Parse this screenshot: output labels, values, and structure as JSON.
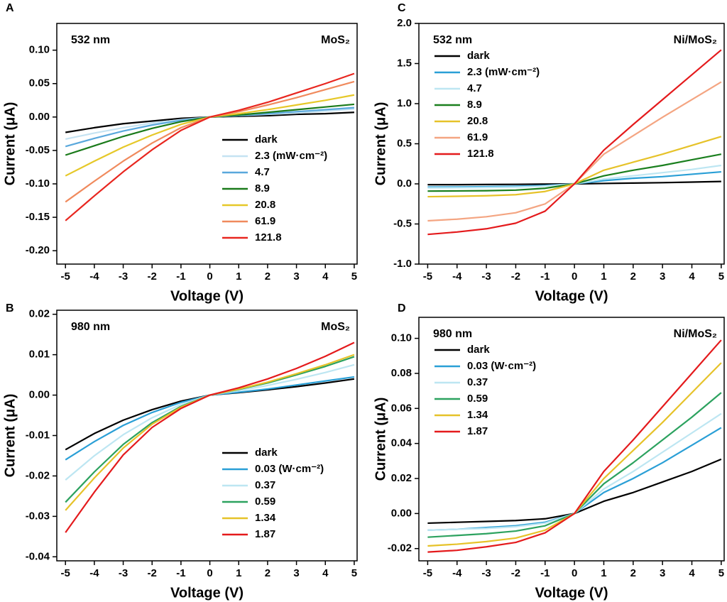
{
  "chart_data": [
    {
      "type": "line",
      "panel": "A",
      "annotations": [
        "532 nm",
        "MoS₂"
      ],
      "x_label": "Voltage (V)",
      "y_label": "Current (μA)",
      "x": [
        -5,
        -4,
        -3,
        -2,
        -1,
        0,
        1,
        2,
        3,
        4,
        5
      ],
      "xlim": [
        -5.3,
        5.1
      ],
      "xticks": [
        -5,
        -4,
        -3,
        -2,
        -1,
        0,
        1,
        2,
        3,
        4,
        5
      ],
      "ylim": [
        -0.22,
        0.14
      ],
      "yticks": [
        {
          "value": -0.2,
          "label": "-0.20"
        },
        -0.15,
        {
          "value": -0.1,
          "label": "-0.10"
        },
        -0.05,
        {
          "value": 0,
          "label": "0.00"
        },
        0.05,
        {
          "value": 0.1,
          "label": "0.10"
        }
      ],
      "legend": "lower right",
      "series": [
        {
          "name": "dark",
          "color": "#000000",
          "values": [
            -0.023,
            -0.016,
            -0.01,
            -0.006,
            -0.002,
            0,
            0.001,
            0.002,
            0.004,
            0.005,
            0.007
          ]
        },
        {
          "name": "2.3 (mW·cm⁻²)",
          "color": "#c5e3f2",
          "values": [
            -0.033,
            -0.024,
            -0.016,
            -0.009,
            -0.004,
            0,
            0.002,
            0.004,
            0.006,
            0.009,
            0.012
          ]
        },
        {
          "name": "4.7",
          "color": "#5aa8dc",
          "values": [
            -0.044,
            -0.032,
            -0.021,
            -0.012,
            -0.005,
            0,
            0.002,
            0.005,
            0.008,
            0.011,
            0.014
          ]
        },
        {
          "name": "8.9",
          "color": "#1a7a1a",
          "values": [
            -0.057,
            -0.043,
            -0.029,
            -0.017,
            -0.007,
            0,
            0.003,
            0.007,
            0.011,
            0.015,
            0.019
          ]
        },
        {
          "name": "20.8",
          "color": "#e6c829",
          "values": [
            -0.088,
            -0.066,
            -0.045,
            -0.027,
            -0.011,
            0,
            0.005,
            0.011,
            0.018,
            0.025,
            0.033
          ]
        },
        {
          "name": "61.9",
          "color": "#f08a5d",
          "values": [
            -0.127,
            -0.096,
            -0.066,
            -0.039,
            -0.016,
            0,
            0.008,
            0.018,
            0.029,
            0.041,
            0.053
          ]
        },
        {
          "name": "121.8",
          "color": "#e8261f",
          "values": [
            -0.155,
            -0.118,
            -0.082,
            -0.049,
            -0.02,
            0,
            0.01,
            0.022,
            0.036,
            0.05,
            0.065
          ]
        }
      ]
    },
    {
      "type": "line",
      "panel": "B",
      "annotations": [
        "980 nm",
        "MoS₂"
      ],
      "x_label": "Voltage (V)",
      "y_label": "Current (μA)",
      "x": [
        -5,
        -4,
        -3,
        -2,
        -1,
        0,
        1,
        2,
        3,
        4,
        5
      ],
      "xlim": [
        -5.3,
        5.1
      ],
      "xticks": [
        -5,
        -4,
        -3,
        -2,
        -1,
        0,
        1,
        2,
        3,
        4,
        5
      ],
      "ylim": [
        -0.041,
        0.021
      ],
      "yticks": [
        -0.04,
        -0.03,
        -0.02,
        -0.01,
        {
          "value": 0,
          "label": "0.00"
        },
        0.01,
        0.02
      ],
      "legend": "lower right",
      "series": [
        {
          "name": "dark",
          "color": "#000000",
          "values": [
            -0.0135,
            -0.0095,
            -0.0062,
            -0.0036,
            -0.0015,
            0,
            0.0006,
            0.0013,
            0.0021,
            0.003,
            0.004
          ]
        },
        {
          "name": "0.03 (W·cm⁻²)",
          "color": "#2a9fd6",
          "values": [
            -0.016,
            -0.0115,
            -0.0075,
            -0.0043,
            -0.0018,
            0,
            0.0007,
            0.0015,
            0.0025,
            0.0035,
            0.0045
          ]
        },
        {
          "name": "0.37",
          "color": "#bde6f2",
          "values": [
            -0.021,
            -0.015,
            -0.0098,
            -0.0056,
            -0.0023,
            0,
            0.0011,
            0.0024,
            0.0039,
            0.0056,
            0.0075
          ]
        },
        {
          "name": "0.59",
          "color": "#2ca25f",
          "values": [
            -0.0265,
            -0.019,
            -0.0122,
            -0.0068,
            -0.0028,
            0,
            0.0014,
            0.003,
            0.005,
            0.0071,
            0.0095
          ]
        },
        {
          "name": "1.34",
          "color": "#e6c229",
          "values": [
            -0.0285,
            -0.0205,
            -0.0131,
            -0.0072,
            -0.003,
            0,
            0.0015,
            0.0032,
            0.0053,
            0.0075,
            0.01
          ]
        },
        {
          "name": "1.87",
          "color": "#e41a1c",
          "values": [
            -0.034,
            -0.024,
            -0.0148,
            -0.008,
            -0.0033,
            0,
            0.0018,
            0.004,
            0.0066,
            0.0096,
            0.013
          ]
        }
      ]
    },
    {
      "type": "line",
      "panel": "C",
      "annotations": [
        "532 nm",
        "Ni/MoS₂"
      ],
      "x_label": "Voltage (V)",
      "y_label": "Current (μA)",
      "x": [
        -5,
        -4,
        -3,
        -2,
        -1,
        0,
        1,
        2,
        3,
        4,
        5
      ],
      "xlim": [
        -5.3,
        5.1
      ],
      "xticks": [
        -5,
        -4,
        -3,
        -2,
        -1,
        0,
        1,
        2,
        3,
        4,
        5
      ],
      "ylim": [
        -1.0,
        2.0
      ],
      "yticks": [
        {
          "value": -1,
          "label": "-1.0"
        },
        -0.5,
        {
          "value": 0,
          "label": "0.0"
        },
        0.5,
        {
          "value": 1,
          "label": "1.0"
        },
        1.5,
        {
          "value": 2,
          "label": "2.0"
        }
      ],
      "legend": "upper left",
      "series": [
        {
          "name": "dark",
          "color": "#000000",
          "values": [
            -0.01,
            -0.01,
            -0.008,
            -0.006,
            -0.003,
            0,
            0.005,
            0.01,
            0.015,
            0.022,
            0.03
          ]
        },
        {
          "name": "2.3 (mW·cm⁻²)",
          "color": "#2a9fd6",
          "values": [
            -0.04,
            -0.038,
            -0.035,
            -0.03,
            -0.02,
            0,
            0.04,
            0.07,
            0.09,
            0.12,
            0.15
          ]
        },
        {
          "name": "4.7",
          "color": "#bde6f2",
          "values": [
            -0.05,
            -0.048,
            -0.045,
            -0.04,
            -0.028,
            0,
            0.06,
            0.1,
            0.14,
            0.18,
            0.23
          ]
        },
        {
          "name": "8.9",
          "color": "#1a7f1e",
          "values": [
            -0.09,
            -0.088,
            -0.085,
            -0.078,
            -0.055,
            0,
            0.1,
            0.17,
            0.23,
            0.3,
            0.37
          ]
        },
        {
          "name": "20.8",
          "color": "#e6c229",
          "values": [
            -0.16,
            -0.155,
            -0.148,
            -0.135,
            -0.095,
            0,
            0.17,
            0.27,
            0.37,
            0.48,
            0.59
          ]
        },
        {
          "name": "61.9",
          "color": "#f4a582",
          "values": [
            -0.46,
            -0.44,
            -0.41,
            -0.36,
            -0.25,
            0,
            0.37,
            0.6,
            0.83,
            1.05,
            1.27
          ]
        },
        {
          "name": "121.8",
          "color": "#e41a1c",
          "values": [
            -0.63,
            -0.6,
            -0.56,
            -0.49,
            -0.34,
            0,
            0.42,
            0.74,
            1.05,
            1.36,
            1.67
          ]
        }
      ]
    },
    {
      "type": "line",
      "panel": "D",
      "annotations": [
        "980 nm",
        "Ni/MoS₂"
      ],
      "x_label": "Voltage (V)",
      "y_label": "Current (μA)",
      "x": [
        -5,
        -4,
        -3,
        -2,
        -1,
        0,
        1,
        2,
        3,
        4,
        5
      ],
      "xlim": [
        -5.3,
        5.1
      ],
      "xticks": [
        -5,
        -4,
        -3,
        -2,
        -1,
        0,
        1,
        2,
        3,
        4,
        5
      ],
      "ylim": [
        -0.027,
        0.112
      ],
      "yticks": [
        -0.02,
        {
          "value": 0,
          "label": "0.00"
        },
        0.02,
        0.04,
        0.06,
        0.08,
        {
          "value": 0.1,
          "label": "0.10"
        }
      ],
      "legend": "upper left",
      "series": [
        {
          "name": "dark",
          "color": "#000000",
          "values": [
            -0.0055,
            -0.005,
            -0.0045,
            -0.004,
            -0.003,
            0,
            0.007,
            0.012,
            0.018,
            0.024,
            0.031
          ]
        },
        {
          "name": "0.03 (W·cm⁻²)",
          "color": "#2a9fd6",
          "values": [
            -0.0095,
            -0.009,
            -0.008,
            -0.007,
            -0.005,
            0,
            0.012,
            0.02,
            0.029,
            0.039,
            0.049
          ]
        },
        {
          "name": "0.37",
          "color": "#bde6f2",
          "values": [
            -0.0095,
            -0.009,
            -0.0085,
            -0.0075,
            -0.0055,
            0,
            0.014,
            0.024,
            0.035,
            0.046,
            0.057
          ]
        },
        {
          "name": "0.59",
          "color": "#2ca25f",
          "values": [
            -0.0135,
            -0.0125,
            -0.0115,
            -0.01,
            -0.007,
            0,
            0.017,
            0.029,
            0.042,
            0.055,
            0.069
          ]
        },
        {
          "name": "1.34",
          "color": "#e6c229",
          "values": [
            -0.0185,
            -0.0175,
            -0.016,
            -0.014,
            -0.0095,
            0,
            0.02,
            0.036,
            0.052,
            0.069,
            0.086
          ]
        },
        {
          "name": "1.87",
          "color": "#e41a1c",
          "values": [
            -0.022,
            -0.021,
            -0.019,
            -0.0165,
            -0.011,
            0,
            0.024,
            0.042,
            0.061,
            0.08,
            0.099
          ]
        }
      ]
    }
  ]
}
